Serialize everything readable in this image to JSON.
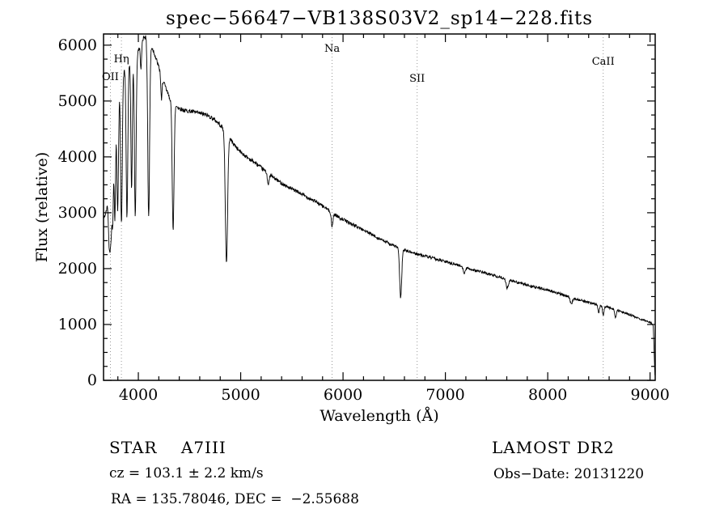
{
  "title": "spec−56647−VB138S03V2_sp14−228.fits",
  "chart_data": {
    "type": "line",
    "title": "spec−56647−VB138S03V2_sp14−228.fits",
    "xlabel": "Wavelength (Å)",
    "ylabel": "Flux (relative)",
    "xlim": [
      3660,
      9050
    ],
    "ylim": [
      0,
      6200
    ],
    "xticks": [
      4000,
      5000,
      6000,
      7000,
      8000,
      9000
    ],
    "yticks": [
      0,
      1000,
      2000,
      3000,
      4000,
      5000,
      6000
    ],
    "x_minor_step": 200,
    "y_minor_step": 250,
    "grid": false,
    "line_color": "#000000",
    "marker_line_color": "#999999",
    "marker_lines": [
      {
        "label": "OII",
        "wavelength": 3727,
        "label_dy": 46
      },
      {
        "label": "Hη",
        "wavelength": 3835,
        "label_dy": 24
      },
      {
        "label": "Na",
        "wavelength": 5893,
        "label_dy": 11
      },
      {
        "label": "SII",
        "wavelength": 6724,
        "label_dy": 48
      },
      {
        "label": "CaII",
        "wavelength": 8542,
        "label_dy": 27
      }
    ],
    "spectrum": {
      "noise_amplitude": 30,
      "sample_step": 3,
      "continuum": [
        [
          3660,
          2900
        ],
        [
          3675,
          2950
        ],
        [
          3690,
          3050
        ],
        [
          3705,
          3250
        ],
        [
          3720,
          3600
        ],
        [
          3735,
          4050
        ],
        [
          3750,
          4450
        ],
        [
          3765,
          4750
        ],
        [
          3780,
          5000
        ],
        [
          3800,
          5200
        ],
        [
          3820,
          5320
        ],
        [
          3840,
          5430
        ],
        [
          3860,
          5530
        ],
        [
          3880,
          5620
        ],
        [
          3900,
          5680
        ],
        [
          3925,
          5710
        ],
        [
          3950,
          5740
        ],
        [
          3975,
          5800
        ],
        [
          4000,
          5900
        ],
        [
          4030,
          6080
        ],
        [
          4060,
          6160
        ],
        [
          4090,
          6120
        ],
        [
          4120,
          6010
        ],
        [
          4150,
          5890
        ],
        [
          4180,
          5720
        ],
        [
          4210,
          5550
        ],
        [
          4240,
          5380
        ],
        [
          4270,
          5220
        ],
        [
          4300,
          5080
        ],
        [
          4330,
          4990
        ],
        [
          4360,
          4930
        ],
        [
          4400,
          4870
        ],
        [
          4450,
          4830
        ],
        [
          4500,
          4820
        ],
        [
          4550,
          4800
        ],
        [
          4600,
          4780
        ],
        [
          4650,
          4760
        ],
        [
          4700,
          4720
        ],
        [
          4750,
          4660
        ],
        [
          4800,
          4570
        ],
        [
          4861,
          4440
        ],
        [
          4920,
          4260
        ],
        [
          4980,
          4120
        ],
        [
          5050,
          4010
        ],
        [
          5150,
          3880
        ],
        [
          5250,
          3730
        ],
        [
          5350,
          3590
        ],
        [
          5450,
          3470
        ],
        [
          5550,
          3380
        ],
        [
          5650,
          3280
        ],
        [
          5750,
          3180
        ],
        [
          5850,
          3060
        ],
        [
          5950,
          2930
        ],
        [
          6050,
          2830
        ],
        [
          6150,
          2740
        ],
        [
          6250,
          2640
        ],
        [
          6350,
          2540
        ],
        [
          6450,
          2450
        ],
        [
          6550,
          2370
        ],
        [
          6650,
          2300
        ],
        [
          6750,
          2250
        ],
        [
          6850,
          2200
        ],
        [
          6950,
          2150
        ],
        [
          7050,
          2100
        ],
        [
          7150,
          2050
        ],
        [
          7250,
          1990
        ],
        [
          7350,
          1940
        ],
        [
          7450,
          1890
        ],
        [
          7550,
          1840
        ],
        [
          7650,
          1780
        ],
        [
          7750,
          1730
        ],
        [
          7850,
          1680
        ],
        [
          7950,
          1640
        ],
        [
          8050,
          1590
        ],
        [
          8150,
          1530
        ],
        [
          8250,
          1470
        ],
        [
          8350,
          1420
        ],
        [
          8450,
          1370
        ],
        [
          8550,
          1330
        ],
        [
          8650,
          1270
        ],
        [
          8750,
          1210
        ],
        [
          8850,
          1140
        ],
        [
          8930,
          1080
        ],
        [
          8990,
          1050
        ],
        [
          9020,
          1020
        ],
        [
          9032,
          950
        ],
        [
          9040,
          500
        ],
        [
          9046,
          120
        ],
        [
          9050,
          70
        ]
      ],
      "absorption_lines": [
        {
          "center": 3712,
          "depth": 700,
          "sigma": 6
        },
        {
          "center": 3722,
          "depth": 900,
          "sigma": 6
        },
        {
          "center": 3734,
          "depth": 1250,
          "sigma": 7
        },
        {
          "center": 3750,
          "depth": 1550,
          "sigma": 7
        },
        {
          "center": 3771,
          "depth": 1950,
          "sigma": 7
        },
        {
          "center": 3798,
          "depth": 2150,
          "sigma": 8
        },
        {
          "center": 3835,
          "depth": 2600,
          "sigma": 8
        },
        {
          "center": 3889,
          "depth": 2750,
          "sigma": 8
        },
        {
          "center": 3934,
          "depth": 2300,
          "sigma": 7
        },
        {
          "center": 3970,
          "depth": 2850,
          "sigma": 8
        },
        {
          "center": 4026,
          "depth": 500,
          "sigma": 6
        },
        {
          "center": 4101,
          "depth": 3150,
          "sigma": 9
        },
        {
          "center": 4226,
          "depth": 450,
          "sigma": 6
        },
        {
          "center": 4340,
          "depth": 2260,
          "sigma": 9
        },
        {
          "center": 4861,
          "depth": 2350,
          "sigma": 11
        },
        {
          "center": 5270,
          "depth": 200,
          "sigma": 8
        },
        {
          "center": 5893,
          "depth": 260,
          "sigma": 8
        },
        {
          "center": 6563,
          "depth": 890,
          "sigma": 10
        },
        {
          "center": 7186,
          "depth": 110,
          "sigma": 10
        },
        {
          "center": 7605,
          "depth": 160,
          "sigma": 11
        },
        {
          "center": 8230,
          "depth": 110,
          "sigma": 12
        },
        {
          "center": 8498,
          "depth": 130,
          "sigma": 7
        },
        {
          "center": 8542,
          "depth": 170,
          "sigma": 7
        },
        {
          "center": 8662,
          "depth": 150,
          "sigma": 7
        }
      ]
    }
  },
  "annotations": {
    "class_label": "STAR    A7III",
    "survey": "LAMOST DR2",
    "cz": "cz = 103.1 ± 2.2 km/s",
    "obs_date": "Obs−Date: 20131220",
    "radec": "RA = 135.78046, DEC =  −2.55688"
  }
}
